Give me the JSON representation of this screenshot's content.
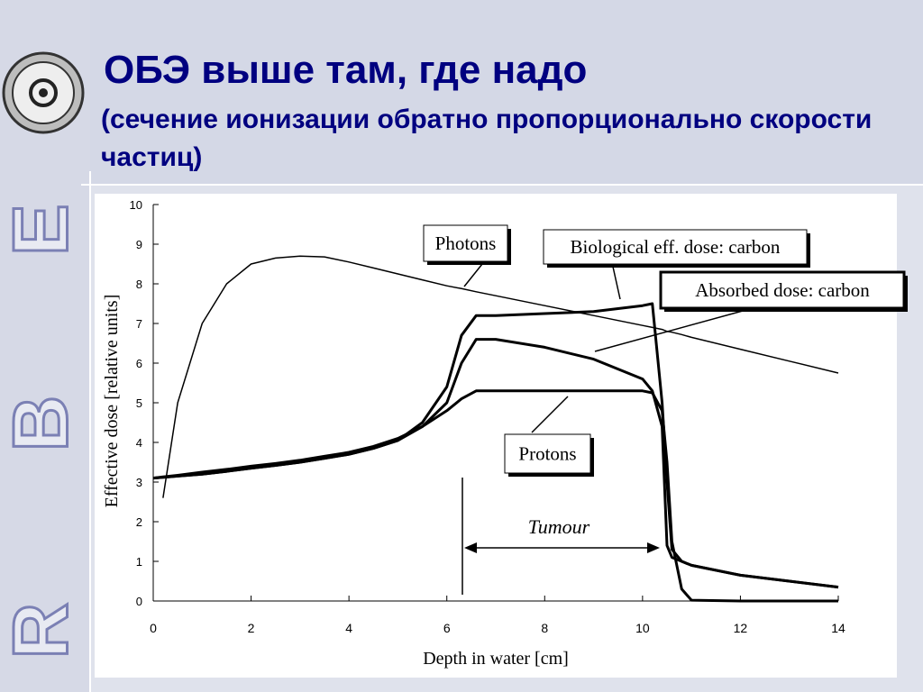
{
  "slide": {
    "title": "ОБЭ выше там, где надо",
    "subtitle": "(сечение ионизации обратно пропорционально скорости частиц)",
    "side_letters": [
      "R",
      "B",
      "E"
    ]
  },
  "chart_data": {
    "type": "line",
    "x_label": "Depth in water [cm]",
    "y_label": "Effective dose [relative units]",
    "annotations": [
      "Tumour"
    ],
    "x": [
      0,
      0.2,
      0.5,
      1,
      1.5,
      2,
      2.5,
      3,
      3.5,
      4,
      4.5,
      5,
      5.5,
      6,
      6.3,
      6.6,
      7,
      8,
      9,
      10,
      10.2,
      10.4,
      10.5,
      10.6,
      10.8,
      11,
      12,
      13,
      14
    ],
    "series": [
      {
        "name": "Photons",
        "color": "#000000",
        "values": [
          null,
          2.6,
          5.0,
          7.0,
          8.0,
          8.5,
          8.65,
          8.7,
          8.68,
          8.55,
          8.4,
          8.25,
          8.1,
          7.95,
          7.88,
          7.8,
          7.7,
          7.45,
          7.2,
          6.95,
          6.9,
          6.85,
          6.8,
          6.78,
          6.72,
          6.65,
          6.35,
          6.05,
          5.75
        ]
      },
      {
        "name": "Biological eff. dose: carbon",
        "color": "#000000",
        "values": [
          3.1,
          3.12,
          3.15,
          3.2,
          3.27,
          3.35,
          3.42,
          3.5,
          3.6,
          3.7,
          3.85,
          4.05,
          4.5,
          5.4,
          6.7,
          7.2,
          7.2,
          7.25,
          7.3,
          7.45,
          7.5,
          5.0,
          3.0,
          1.3,
          1.0,
          0.9,
          0.65,
          0.5,
          0.35
        ]
      },
      {
        "name": "Absorbed dose: carbon",
        "color": "#000000",
        "values": [
          3.1,
          3.12,
          3.15,
          3.2,
          3.27,
          3.35,
          3.42,
          3.5,
          3.6,
          3.7,
          3.85,
          4.05,
          4.4,
          5.0,
          6.0,
          6.6,
          6.6,
          6.4,
          6.1,
          5.6,
          5.3,
          4.4,
          1.4,
          1.1,
          1.0,
          0.9,
          0.65,
          0.5,
          0.35
        ]
      },
      {
        "name": "Protons",
        "color": "#000000",
        "values": [
          3.1,
          3.13,
          3.17,
          3.25,
          3.32,
          3.4,
          3.47,
          3.55,
          3.65,
          3.75,
          3.9,
          4.1,
          4.4,
          4.8,
          5.1,
          5.3,
          5.3,
          5.3,
          5.3,
          5.3,
          5.25,
          4.8,
          3.5,
          1.5,
          0.3,
          0.02,
          0,
          0,
          0
        ]
      }
    ],
    "xlim": [
      0,
      14
    ],
    "xticks": [
      0,
      2,
      4,
      6,
      8,
      10,
      12,
      14
    ],
    "ylim": [
      0,
      10
    ],
    "yticks": [
      0,
      1,
      2,
      3,
      4,
      5,
      6,
      7,
      8,
      9,
      10
    ]
  }
}
